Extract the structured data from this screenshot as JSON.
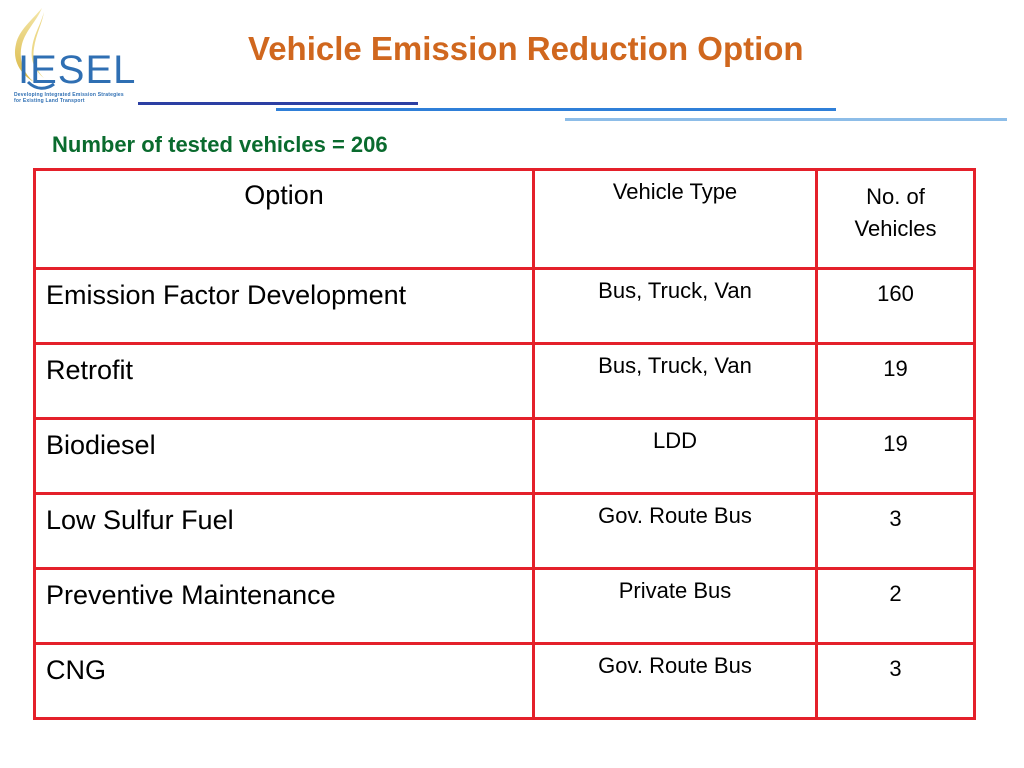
{
  "logo": {
    "wordmark": "IESEL",
    "tagline_1": "Developing Integrated Emission Strategies",
    "tagline_2": "for Existing Land Transport"
  },
  "title": "Vehicle Emission Reduction Option",
  "subtitle": "Number of tested vehicles = 206",
  "colors": {
    "title": "#d0671e",
    "subtitle": "#0a6b2e",
    "table_border": "#e4202a",
    "logo_blue": "#2f6fb3"
  },
  "table": {
    "headers": {
      "option": "Option",
      "vehicle_type": "Vehicle Type",
      "count_line1": "No. of",
      "count_line2": "Vehicles"
    },
    "rows": [
      {
        "option": "Emission Factor Development",
        "vehicle_type": "Bus, Truck, Van",
        "count": "160"
      },
      {
        "option": "Retrofit",
        "vehicle_type": "Bus, Truck, Van",
        "count": "19"
      },
      {
        "option": "Biodiesel",
        "vehicle_type": "LDD",
        "count": "19"
      },
      {
        "option": "Low Sulfur Fuel",
        "vehicle_type": "Gov. Route Bus",
        "count": "3"
      },
      {
        "option": "Preventive Maintenance",
        "vehicle_type": "Private Bus",
        "count": "2"
      },
      {
        "option": "CNG",
        "vehicle_type": "Gov. Route Bus",
        "count": "3"
      }
    ]
  }
}
